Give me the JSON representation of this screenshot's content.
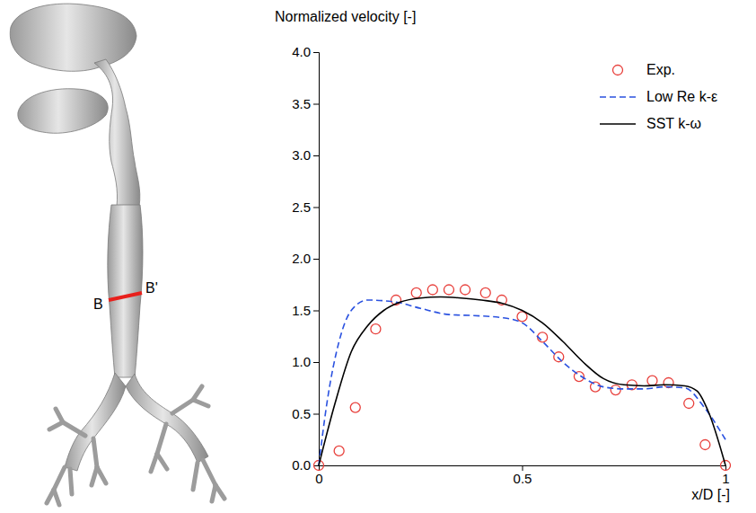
{
  "chart_data": {
    "type": "line",
    "y_label": "Normalized velocity [-]",
    "x_label": "x/D [-]",
    "annotations": [
      "B",
      "B'"
    ],
    "xlim": [
      0,
      1
    ],
    "xticks": [
      0,
      0.5,
      1
    ],
    "ylim": [
      0,
      4
    ],
    "yticks": [
      {
        "value": 0,
        "label": "0.0"
      },
      0.5,
      {
        "value": 1,
        "label": "1.0"
      },
      1.5,
      {
        "value": 2,
        "label": "2.0"
      },
      2.5,
      {
        "value": 3,
        "label": "3.0"
      },
      3.5,
      {
        "value": 4,
        "label": "4.0"
      }
    ],
    "grid": false,
    "legend": "upper-right",
    "series": [
      {
        "name": "Exp.",
        "type": "scatter",
        "marker": "circle",
        "color": "#e8403c",
        "x": [
          0,
          0.05,
          0.09,
          0.14,
          0.19,
          0.24,
          0.28,
          0.32,
          0.36,
          0.41,
          0.45,
          0.5,
          0.55,
          0.59,
          0.64,
          0.68,
          0.73,
          0.77,
          0.82,
          0.86,
          0.91,
          0.95,
          1.0
        ],
        "values": [
          0,
          0.14,
          0.56,
          1.32,
          1.6,
          1.67,
          1.7,
          1.7,
          1.7,
          1.67,
          1.6,
          1.44,
          1.24,
          1.05,
          0.86,
          0.76,
          0.73,
          0.78,
          0.82,
          0.8,
          0.6,
          0.2,
          0
        ]
      },
      {
        "name": "Low Re k-ε",
        "type": "line",
        "line_style": "dashed",
        "color": "#2b52e0",
        "x": [
          0,
          0.02,
          0.05,
          0.08,
          0.12,
          0.19,
          0.25,
          0.32,
          0.38,
          0.45,
          0.5,
          0.55,
          0.6,
          0.65,
          0.7,
          0.75,
          0.8,
          0.85,
          0.9,
          0.95,
          1.0
        ],
        "values": [
          0,
          0.6,
          1.2,
          1.5,
          1.6,
          1.58,
          1.52,
          1.46,
          1.45,
          1.43,
          1.38,
          1.2,
          1.0,
          0.85,
          0.76,
          0.74,
          0.74,
          0.76,
          0.75,
          0.55,
          0.25
        ]
      },
      {
        "name": "SST k-ω",
        "type": "line",
        "line_style": "solid",
        "color": "#000000",
        "x": [
          0,
          0.04,
          0.08,
          0.12,
          0.16,
          0.2,
          0.25,
          0.3,
          0.35,
          0.4,
          0.45,
          0.5,
          0.55,
          0.6,
          0.65,
          0.7,
          0.75,
          0.8,
          0.85,
          0.9,
          0.93,
          0.96,
          1.0
        ],
        "values": [
          0,
          0.6,
          1.1,
          1.35,
          1.5,
          1.58,
          1.62,
          1.63,
          1.62,
          1.6,
          1.57,
          1.5,
          1.38,
          1.2,
          1.0,
          0.84,
          0.78,
          0.77,
          0.78,
          0.77,
          0.72,
          0.5,
          0
        ]
      }
    ]
  }
}
